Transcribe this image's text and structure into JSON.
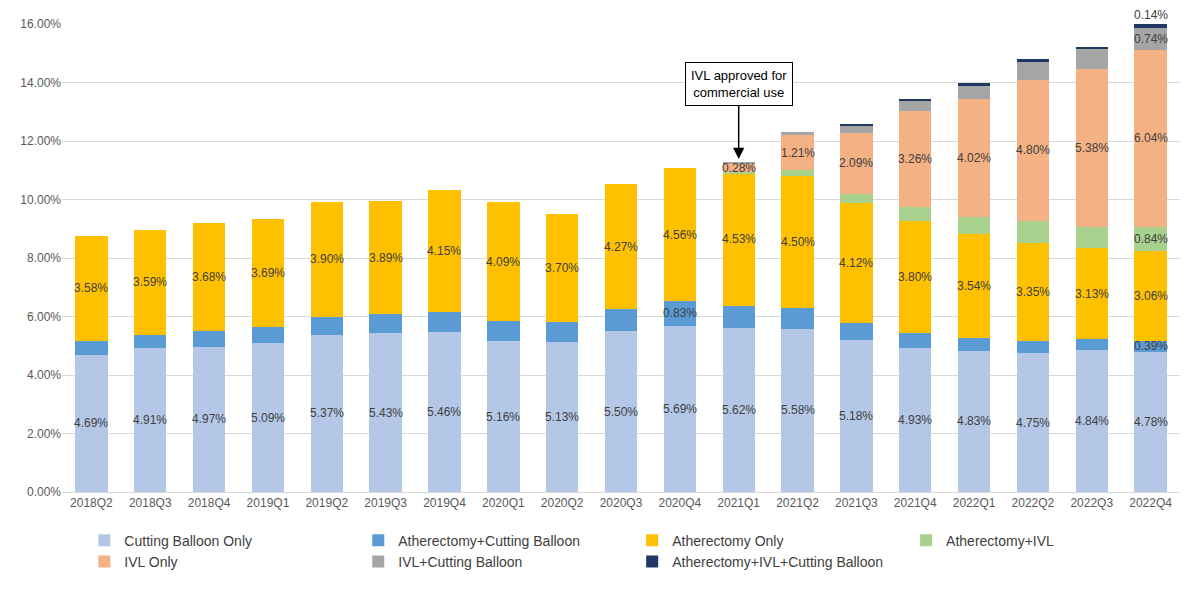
{
  "chart_data": {
    "type": "bar",
    "stacked": true,
    "data_labels": true,
    "grid": true,
    "legend": "bottom",
    "categories": [
      "2018Q2",
      "2018Q3",
      "2018Q4",
      "2019Q1",
      "2019Q2",
      "2019Q3",
      "2019Q4",
      "2020Q1",
      "2020Q2",
      "2020Q3",
      "2020Q4",
      "2021Q1",
      "2021Q2",
      "2021Q3",
      "2021Q4",
      "2022Q1",
      "2022Q2",
      "2022Q3",
      "2022Q4"
    ],
    "ylim": [
      0,
      16
    ],
    "yticks": [
      {
        "value": 0,
        "label": "0.00%"
      },
      {
        "value": 2,
        "label": "2.00%"
      },
      {
        "value": 4,
        "label": "4.00%"
      },
      {
        "value": 6,
        "label": "6.00%"
      },
      {
        "value": 8,
        "label": "8.00%"
      },
      {
        "value": 10,
        "label": "10.00%"
      },
      {
        "value": 12,
        "label": "12.00%"
      },
      {
        "value": 14,
        "label": "14.00%"
      },
      {
        "value": 16,
        "label": "16.00%"
      }
    ],
    "annotations": [
      {
        "text": "IVL approved for\ncommercial use",
        "category": "2021Q1"
      }
    ],
    "series": [
      {
        "name": "Cutting Balloon Only",
        "color": "#b4c7e7",
        "values": [
          4.69,
          4.91,
          4.97,
          5.09,
          5.37,
          5.43,
          5.46,
          5.16,
          5.13,
          5.5,
          5.69,
          5.62,
          5.58,
          5.18,
          4.93,
          4.83,
          4.75,
          4.84,
          4.78
        ],
        "value_labels": [
          "4.69%",
          "4.91%",
          "4.97%",
          "5.09%",
          "5.37%",
          "5.43%",
          "5.46%",
          "5.16%",
          "5.13%",
          "5.50%",
          "5.69%",
          "5.62%",
          "5.58%",
          "5.18%",
          "4.93%",
          "4.83%",
          "4.75%",
          "4.84%",
          "4.78%"
        ]
      },
      {
        "name": "Atherectomy+Cutting Balloon",
        "color": "#5b9bd5",
        "values": [
          0.48,
          0.46,
          0.53,
          0.56,
          0.63,
          0.64,
          0.71,
          0.67,
          0.67,
          0.75,
          0.83,
          0.75,
          0.72,
          0.59,
          0.52,
          0.44,
          0.42,
          0.38,
          0.39
        ],
        "value_labels": [
          null,
          null,
          null,
          null,
          null,
          null,
          null,
          null,
          null,
          null,
          "0.83%",
          null,
          null,
          null,
          null,
          null,
          null,
          null,
          "0.39%"
        ]
      },
      {
        "name": "Atherectomy Only",
        "color": "#ffc000",
        "values": [
          3.58,
          3.59,
          3.68,
          3.69,
          3.9,
          3.89,
          4.15,
          4.09,
          3.7,
          4.27,
          4.56,
          4.53,
          4.5,
          4.12,
          3.8,
          3.54,
          3.35,
          3.13,
          3.06
        ],
        "value_labels": [
          "3.58%",
          "3.59%",
          "3.68%",
          "3.69%",
          "3.90%",
          "3.89%",
          "4.15%",
          "4.09%",
          "3.70%",
          "4.27%",
          "4.56%",
          "4.53%",
          "4.50%",
          "4.12%",
          "3.80%",
          "3.54%",
          "3.35%",
          "3.13%",
          "3.06%"
        ]
      },
      {
        "name": "Atherectomy+IVL",
        "color": "#a9d18e",
        "values": [
          null,
          null,
          null,
          null,
          null,
          null,
          null,
          null,
          null,
          null,
          null,
          0.05,
          0.2,
          0.31,
          0.5,
          0.59,
          0.76,
          0.72,
          0.84
        ],
        "value_labels": [
          null,
          null,
          null,
          null,
          null,
          null,
          null,
          null,
          null,
          null,
          null,
          null,
          null,
          null,
          null,
          null,
          null,
          null,
          "0.84%"
        ]
      },
      {
        "name": "IVL Only",
        "color": "#f4b183",
        "values": [
          null,
          null,
          null,
          null,
          null,
          null,
          null,
          null,
          null,
          null,
          null,
          0.28,
          1.21,
          2.09,
          3.26,
          4.02,
          4.8,
          5.38,
          6.04
        ],
        "value_labels": [
          null,
          null,
          null,
          null,
          null,
          null,
          null,
          null,
          null,
          null,
          null,
          "0.28%",
          "1.21%",
          "2.09%",
          "3.26%",
          "4.02%",
          "4.80%",
          "5.38%",
          "6.04%"
        ]
      },
      {
        "name": "IVL+Cutting Balloon",
        "color": "#a5a5a5",
        "values": [
          null,
          null,
          null,
          null,
          null,
          null,
          null,
          null,
          null,
          null,
          null,
          0.02,
          0.1,
          0.25,
          0.35,
          0.47,
          0.62,
          0.68,
          0.74
        ],
        "value_labels": [
          null,
          null,
          null,
          null,
          null,
          null,
          null,
          null,
          null,
          null,
          null,
          null,
          null,
          null,
          null,
          null,
          null,
          null,
          "0.74%"
        ]
      },
      {
        "name": "Atherectomy+IVL+Cutting Balloon",
        "color": "#203864",
        "values": [
          null,
          null,
          null,
          null,
          null,
          null,
          null,
          null,
          null,
          null,
          null,
          null,
          null,
          0.05,
          0.07,
          0.08,
          0.1,
          0.1,
          0.14
        ],
        "value_labels": [
          null,
          null,
          null,
          null,
          null,
          null,
          null,
          null,
          null,
          null,
          null,
          null,
          null,
          null,
          null,
          null,
          null,
          null,
          "0.14%"
        ]
      }
    ]
  }
}
